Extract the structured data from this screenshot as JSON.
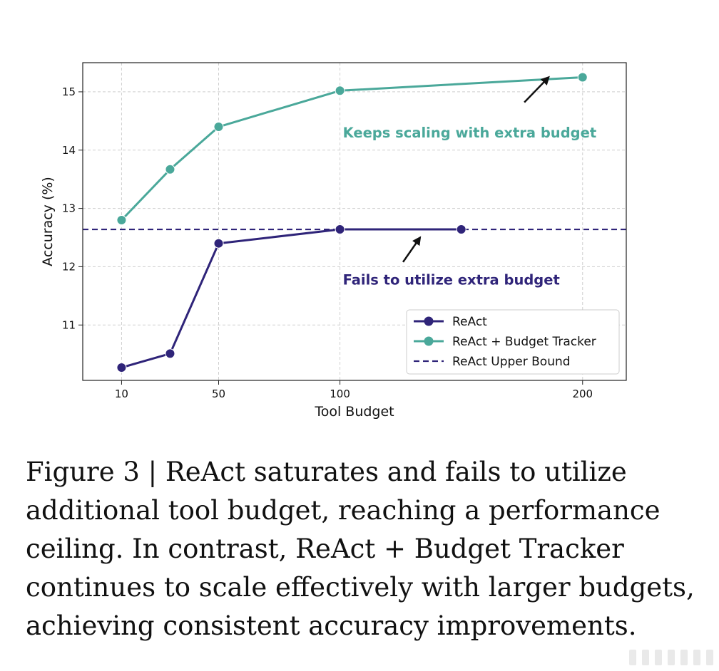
{
  "chart_data": {
    "type": "line",
    "xlabel": "Tool Budget",
    "ylabel": "Accuracy (%)",
    "xlim": [
      -6,
      218
    ],
    "ylim": [
      10.05,
      15.5
    ],
    "xticks": [
      10,
      50,
      100,
      200
    ],
    "yticks": [
      11,
      12,
      13,
      14,
      15
    ],
    "grid": true,
    "legend_position": "lower-right",
    "series": [
      {
        "name": "ReAct",
        "color": "#2f2479",
        "style": "solid-marker",
        "x": [
          10,
          30,
          50,
          100,
          150
        ],
        "y": [
          10.27,
          10.51,
          12.4,
          12.64,
          12.64
        ]
      },
      {
        "name": "ReAct + Budget Tracker",
        "color": "#4aa89a",
        "style": "solid-marker",
        "x": [
          10,
          30,
          50,
          100,
          200
        ],
        "y": [
          12.8,
          13.67,
          14.4,
          15.02,
          15.25
        ]
      },
      {
        "name": "ReAct Upper Bound",
        "color": "#2f2479",
        "style": "dashed",
        "y": 12.64
      }
    ],
    "annotations": [
      {
        "text": "Keeps scaling with extra budget",
        "color": "#4aa89a",
        "anchor_x": 100,
        "anchor_y": 14.3,
        "arrow_from": [
          176,
          14.82
        ],
        "arrow_to": [
          186,
          15.25
        ]
      },
      {
        "text": "Fails to utilize extra budget",
        "color": "#2f2479",
        "anchor_x": 100,
        "anchor_y": 11.78,
        "arrow_from": [
          126,
          12.08
        ],
        "arrow_to": [
          133,
          12.5
        ]
      }
    ]
  },
  "caption": "Figure 3 | ReAct saturates and fails to utilize additional tool budget, reaching a performance ceiling. In contrast, ReAct + Budget Tracker continues to scale effectively with larger budgets, achieving consistent accuracy improvements."
}
